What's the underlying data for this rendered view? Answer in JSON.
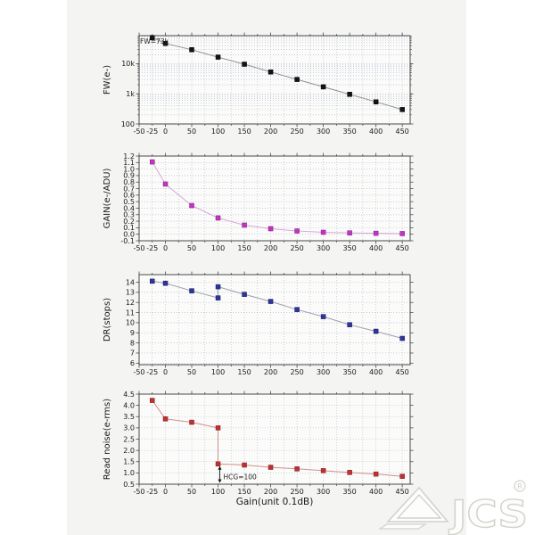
{
  "page": {
    "canvas_bg": "#ffffff",
    "panel_bg": "#f4f4f2",
    "plot_bg": "#fbfbfa",
    "axis_color": "#4a4a4a",
    "grid_color": "#a8b0c6",
    "text_color": "#1a1a1a"
  },
  "x_axis": {
    "label": "Gain(unit 0.1dB)",
    "range": [
      -50,
      465
    ],
    "minor_step": 25,
    "tick_labels": [
      "-50",
      "-25",
      "0",
      "50",
      "100",
      "150",
      "200",
      "250",
      "300",
      "350",
      "400",
      "450"
    ],
    "tick_label_values": [
      -50,
      -25,
      0,
      50,
      100,
      150,
      200,
      250,
      300,
      350,
      400,
      450
    ]
  },
  "chart_data": [
    {
      "id": "fw",
      "type": "line",
      "ylabel": "FW(e-)",
      "yscale": "log",
      "ylim": [
        100,
        85000
      ],
      "yticks": [
        {
          "v": 100,
          "label": "100"
        },
        {
          "v": 1000,
          "label": "1k"
        },
        {
          "v": 10000,
          "label": "10k"
        }
      ],
      "marker_color": "#141414",
      "marker_edge": "#000000",
      "line_color": "#909090",
      "points": [
        [
          -25,
          73000
        ],
        [
          0,
          47000
        ],
        [
          50,
          29000
        ],
        [
          100,
          16500
        ],
        [
          150,
          9600
        ],
        [
          200,
          5300
        ],
        [
          250,
          3000
        ],
        [
          300,
          1700
        ],
        [
          350,
          960
        ],
        [
          400,
          540
        ],
        [
          450,
          300
        ]
      ],
      "annotation": {
        "text": "FW=73k"
      }
    },
    {
      "id": "gain",
      "type": "line",
      "ylabel": "GAIN(e-/ADU)",
      "yscale": "linear",
      "ylim": [
        -0.1,
        1.2
      ],
      "yticks": [
        {
          "v": 1.2,
          "label": "1.2"
        },
        {
          "v": 1.1,
          "label": "1.1"
        },
        {
          "v": 1.0,
          "label": "1.0"
        },
        {
          "v": 0.9,
          "label": "0.9"
        },
        {
          "v": 0.8,
          "label": "0.8"
        },
        {
          "v": 0.7,
          "label": "0.7"
        },
        {
          "v": 0.6,
          "label": "0.6"
        },
        {
          "v": 0.5,
          "label": "0.5"
        },
        {
          "v": 0.4,
          "label": "0.4"
        },
        {
          "v": 0.3,
          "label": "0.3"
        },
        {
          "v": 0.2,
          "label": "0.2"
        },
        {
          "v": 0.1,
          "label": "0.1"
        },
        {
          "v": 0.0,
          "label": "0.0"
        },
        {
          "v": -0.1,
          "label": "-0.1"
        }
      ],
      "marker_color": "#c434c4",
      "marker_edge": "#7a1d7a",
      "line_color": "#d9a6d9",
      "points": [
        [
          -25,
          1.11
        ],
        [
          0,
          0.77
        ],
        [
          50,
          0.44
        ],
        [
          100,
          0.25
        ],
        [
          150,
          0.14
        ],
        [
          200,
          0.085
        ],
        [
          250,
          0.05
        ],
        [
          300,
          0.03
        ],
        [
          350,
          0.02
        ],
        [
          400,
          0.015
        ],
        [
          450,
          0.01
        ]
      ]
    },
    {
      "id": "dr",
      "type": "line",
      "ylabel": "DR(stops)",
      "yscale": "linear",
      "ylim": [
        5.85,
        14.75
      ],
      "yticks": [
        {
          "v": 14,
          "label": "14"
        },
        {
          "v": 13,
          "label": "13"
        },
        {
          "v": 12,
          "label": "12"
        },
        {
          "v": 11,
          "label": "11"
        },
        {
          "v": 10,
          "label": "10"
        },
        {
          "v": 9,
          "label": "9"
        },
        {
          "v": 8,
          "label": "8"
        },
        {
          "v": 7,
          "label": "7"
        },
        {
          "v": 6,
          "label": "6"
        }
      ],
      "marker_color": "#2e3799",
      "marker_edge": "#14175e",
      "line_color": "#9aa0ae",
      "points": [
        [
          -25,
          14.1
        ],
        [
          0,
          13.9
        ],
        [
          50,
          13.15
        ],
        [
          100,
          12.45
        ],
        [
          100,
          13.55
        ],
        [
          150,
          12.8
        ],
        [
          200,
          12.1
        ],
        [
          250,
          11.3
        ],
        [
          300,
          10.6
        ],
        [
          350,
          9.8
        ],
        [
          400,
          9.15
        ],
        [
          450,
          8.45
        ]
      ]
    },
    {
      "id": "read_noise",
      "type": "line",
      "ylabel": "Read noise(e-rms)",
      "xlabel": "Gain(unit 0.1dB)",
      "yscale": "linear",
      "ylim": [
        0.5,
        4.5
      ],
      "yticks": [
        {
          "v": 4.5,
          "label": "4.5"
        },
        {
          "v": 4.0,
          "label": "4.0"
        },
        {
          "v": 3.5,
          "label": "3.5"
        },
        {
          "v": 3.0,
          "label": "3.0"
        },
        {
          "v": 2.5,
          "label": "2.5"
        },
        {
          "v": 2.0,
          "label": "2.0"
        },
        {
          "v": 1.5,
          "label": "1.5"
        },
        {
          "v": 1.0,
          "label": "1.0"
        },
        {
          "v": 0.5,
          "label": "0.5"
        }
      ],
      "marker_color": "#bf3030",
      "marker_edge": "#7e1f1f",
      "line_color": "#cf8f8f",
      "points": [
        [
          -25,
          4.22
        ],
        [
          0,
          3.4
        ],
        [
          50,
          3.25
        ],
        [
          100,
          3.0
        ],
        [
          100,
          1.4
        ],
        [
          150,
          1.35
        ],
        [
          200,
          1.25
        ],
        [
          250,
          1.18
        ],
        [
          300,
          1.1
        ],
        [
          350,
          1.02
        ],
        [
          400,
          0.95
        ],
        [
          450,
          0.85
        ]
      ],
      "annotation": {
        "text": "HCG=100",
        "at_x": 100
      }
    }
  ],
  "watermark": {
    "brand": "JCS",
    "registered": "R"
  }
}
